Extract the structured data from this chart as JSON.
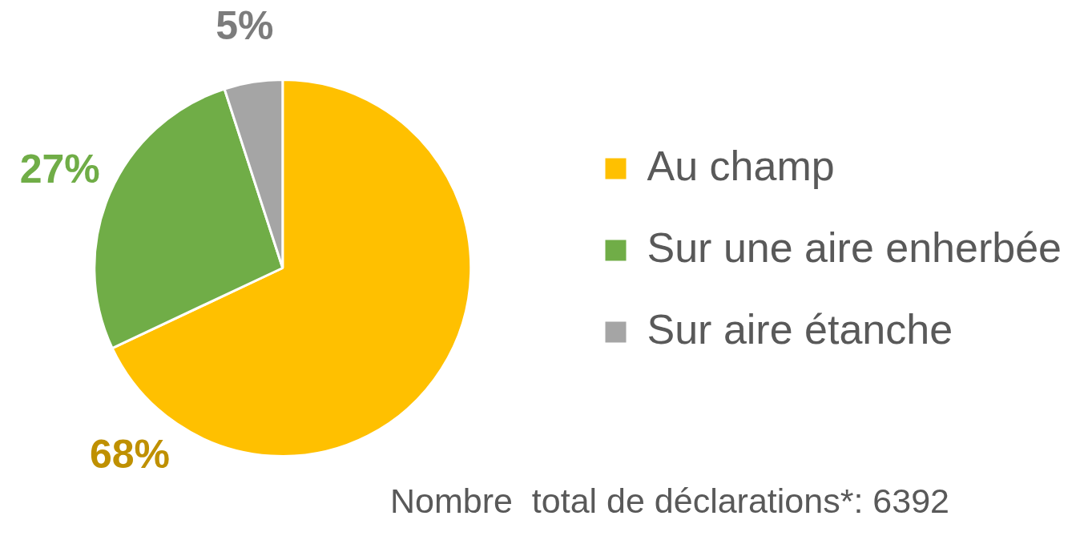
{
  "chart_data": {
    "type": "pie",
    "categories": [
      "Au champ",
      "Sur une aire enherbée",
      "Sur aire étanche"
    ],
    "values": [
      68,
      27,
      5
    ],
    "colors": [
      "#ffc000",
      "#70ad47",
      "#a5a5a5"
    ],
    "value_labels": [
      "68%",
      "27%",
      "5%"
    ],
    "legend": "right",
    "annotations": [
      "Nombre  total de déclarations*: 6392"
    ]
  }
}
